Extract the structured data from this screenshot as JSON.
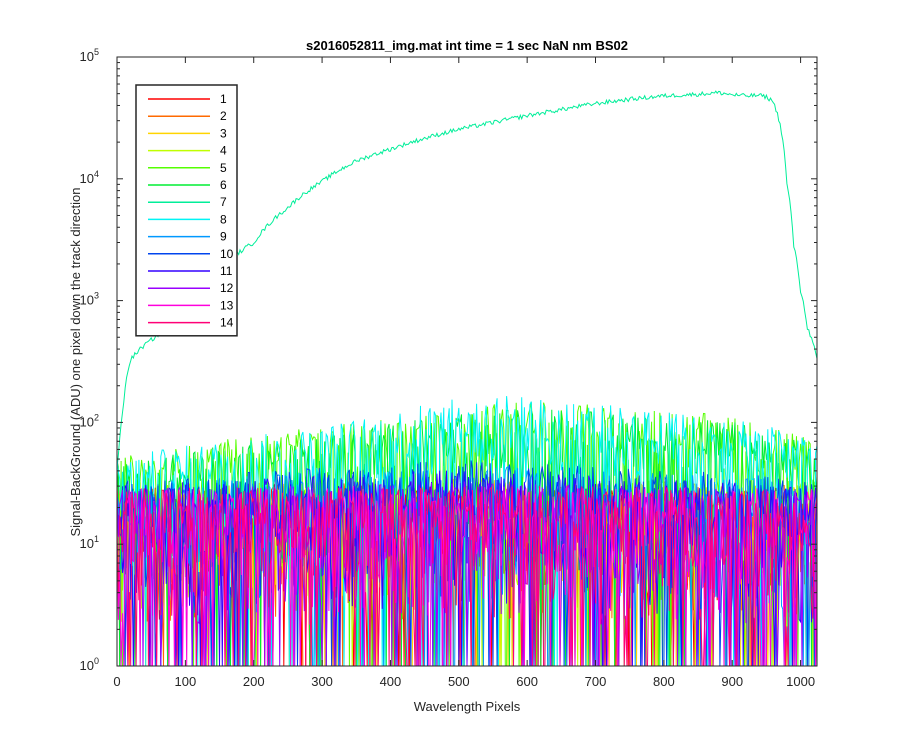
{
  "chart_data": {
    "type": "line",
    "title": "s2016052811_img.mat int time = 1 sec  NaN nm BS02",
    "xlabel": "Wavelength Pixels",
    "ylabel": "Signal-BackGround (ADU) one pixel down the track direction",
    "xlim": [
      0,
      1024
    ],
    "ylim": [
      1,
      100000
    ],
    "yscale": "log",
    "grid": false,
    "legend_position": "top-left",
    "x_ticks": [
      "0",
      "100",
      "200",
      "300",
      "400",
      "500",
      "600",
      "700",
      "800",
      "900",
      "1000"
    ],
    "y_ticks": [
      {
        "base": "10",
        "exp": "0",
        "value": 1
      },
      {
        "base": "10",
        "exp": "1",
        "value": 10
      },
      {
        "base": "10",
        "exp": "2",
        "value": 100
      },
      {
        "base": "10",
        "exp": "3",
        "value": 1000
      },
      {
        "base": "10",
        "exp": "4",
        "value": 10000
      },
      {
        "base": "10",
        "exp": "5",
        "value": 100000
      }
    ],
    "series": [
      {
        "name": "1",
        "color": "#ff0000",
        "profile": "noise",
        "level_x": [
          0,
          500,
          1024
        ],
        "level_y": [
          15,
          15,
          15
        ]
      },
      {
        "name": "2",
        "color": "#ff6a00",
        "profile": "noise",
        "level_x": [
          0,
          500,
          1024
        ],
        "level_y": [
          15,
          16,
          15
        ]
      },
      {
        "name": "3",
        "color": "#ffd400",
        "profile": "noise",
        "level_x": [
          0,
          500,
          1024
        ],
        "level_y": [
          15,
          17,
          15
        ]
      },
      {
        "name": "4",
        "color": "#c0ff00",
        "profile": "noise",
        "level_x": [
          0,
          500,
          1024
        ],
        "level_y": [
          16,
          18,
          16
        ]
      },
      {
        "name": "5",
        "color": "#55ff00",
        "profile": "noise",
        "level_x": [
          0,
          300,
          600,
          900,
          1024
        ],
        "level_y": [
          25,
          45,
          75,
          55,
          35
        ]
      },
      {
        "name": "6",
        "color": "#00ee33",
        "profile": "noise",
        "level_x": [
          0,
          300,
          600,
          900,
          1024
        ],
        "level_y": [
          22,
          40,
          65,
          50,
          30
        ]
      },
      {
        "name": "7",
        "color": "#00ee99",
        "profile": "signal",
        "x": [
          0,
          5,
          10,
          15,
          20,
          30,
          40,
          60,
          80,
          100,
          150,
          200,
          250,
          300,
          350,
          400,
          450,
          500,
          550,
          600,
          650,
          700,
          750,
          800,
          850,
          880,
          900,
          920,
          940,
          950,
          960,
          970,
          980,
          990,
          1000,
          1010,
          1024
        ],
        "y": [
          40,
          80,
          150,
          250,
          330,
          380,
          430,
          520,
          620,
          820,
          1800,
          3000,
          5800,
          9500,
          14000,
          17500,
          21500,
          25500,
          29000,
          33000,
          37000,
          41500,
          45000,
          48000,
          49500,
          51000,
          49000,
          48000,
          48500,
          47000,
          43000,
          28000,
          9000,
          2800,
          1200,
          600,
          330
        ]
      },
      {
        "name": "8",
        "color": "#00f5f5",
        "profile": "noise",
        "level_x": [
          0,
          300,
          550,
          800,
          1024
        ],
        "level_y": [
          25,
          45,
          85,
          60,
          40
        ]
      },
      {
        "name": "9",
        "color": "#0099ff",
        "profile": "noise",
        "level_x": [
          0,
          500,
          1024
        ],
        "level_y": [
          15,
          22,
          16
        ]
      },
      {
        "name": "10",
        "color": "#0044ee",
        "profile": "noise",
        "level_x": [
          0,
          500,
          1024
        ],
        "level_y": [
          16,
          24,
          17
        ]
      },
      {
        "name": "11",
        "color": "#3300ff",
        "profile": "noise",
        "level_x": [
          0,
          500,
          1024
        ],
        "level_y": [
          15,
          20,
          15
        ]
      },
      {
        "name": "12",
        "color": "#9900ff",
        "profile": "noise",
        "level_x": [
          0,
          500,
          1024
        ],
        "level_y": [
          14,
          16,
          14
        ]
      },
      {
        "name": "13",
        "color": "#ff00dd",
        "profile": "noise",
        "level_x": [
          0,
          500,
          1024
        ],
        "level_y": [
          14,
          15,
          14
        ]
      },
      {
        "name": "14",
        "color": "#ff0077",
        "profile": "noise",
        "level_x": [
          0,
          500,
          1024
        ],
        "level_y": [
          14,
          15,
          14
        ]
      }
    ]
  }
}
